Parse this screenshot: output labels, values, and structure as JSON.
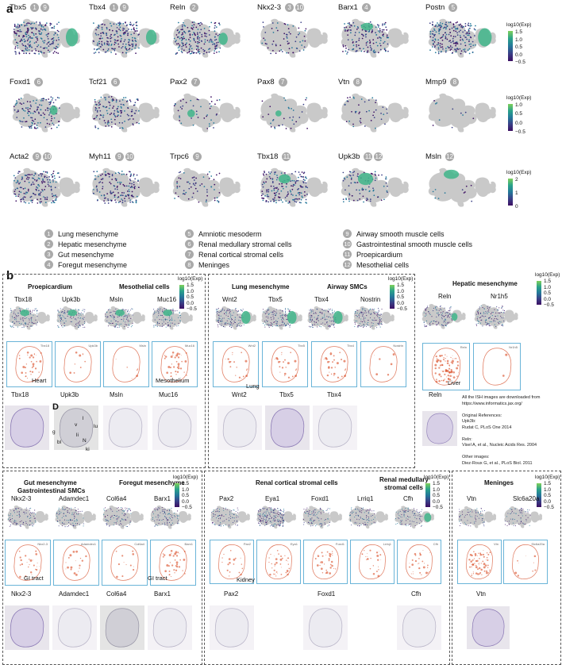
{
  "panel_a": {
    "letter": "a",
    "colorbar_title": "log10(Exp)",
    "colorbar_ticks_rows12": [
      "1.5",
      "1.0",
      "0.5",
      "0.0",
      "−0.5"
    ],
    "colorbar_ticks_row2": [
      "1.0",
      "0.5",
      "0.0",
      "−0.5"
    ],
    "colorbar_ticks_row3": [
      "2",
      "1",
      "0"
    ],
    "genes": [
      {
        "name": "Tbx5",
        "nums": [
          "1",
          "9"
        ]
      },
      {
        "name": "Tbx4",
        "nums": [
          "1",
          "9"
        ]
      },
      {
        "name": "Reln",
        "nums": [
          "2"
        ]
      },
      {
        "name": "Nkx2-3",
        "nums": [
          "3",
          "10"
        ]
      },
      {
        "name": "Barx1",
        "nums": [
          "4"
        ]
      },
      {
        "name": "Postn",
        "nums": [
          "5"
        ]
      },
      {
        "name": "Foxd1",
        "nums": [
          "6"
        ]
      },
      {
        "name": "Tcf21",
        "nums": [
          "6"
        ]
      },
      {
        "name": "Pax2",
        "nums": [
          "7"
        ]
      },
      {
        "name": "Pax8",
        "nums": [
          "7"
        ]
      },
      {
        "name": "Vtn",
        "nums": [
          "8"
        ]
      },
      {
        "name": "Mmp9",
        "nums": [
          "8"
        ]
      },
      {
        "name": "Acta2",
        "nums": [
          "9",
          "10"
        ]
      },
      {
        "name": "Myh11",
        "nums": [
          "9",
          "10"
        ]
      },
      {
        "name": "Trpc6",
        "nums": [
          "9"
        ]
      },
      {
        "name": "Tbx18",
        "nums": [
          "11"
        ]
      },
      {
        "name": "Upk3b",
        "nums": [
          "11",
          "12"
        ]
      },
      {
        "name": "Msln",
        "nums": [
          "12"
        ]
      }
    ],
    "legend": [
      {
        "n": "1",
        "t": "Lung mesenchyme"
      },
      {
        "n": "2",
        "t": "Hepatic mesenchyme"
      },
      {
        "n": "3",
        "t": "Gut mesenchyme"
      },
      {
        "n": "4",
        "t": "Foregut mesenchyme"
      },
      {
        "n": "5",
        "t": "Amniotic mesoderm"
      },
      {
        "n": "6",
        "t": "Renal medullary stromal cells"
      },
      {
        "n": "7",
        "t": "Renal cortical stromal cells"
      },
      {
        "n": "8",
        "t": "Meninges"
      },
      {
        "n": "9",
        "t": "Airway smooth muscle cells"
      },
      {
        "n": "10",
        "t": "Gastrointestinal smooth muscle cells"
      },
      {
        "n": "11",
        "t": "Proepicardium"
      },
      {
        "n": "12",
        "t": "Mesothelial cells"
      }
    ]
  },
  "panel_b": {
    "letter": "b",
    "cb_title": "log10(Exp)",
    "cb_ticks": [
      "1.5",
      "1.0",
      "0.5",
      "0.0",
      "−0.5"
    ],
    "g1": {
      "title1": "Proepicardium",
      "title2": "Mesothelial cells",
      "genes": [
        "Tbx18",
        "Upk3b",
        "Msln",
        "Muc16"
      ],
      "ish": [
        "Tbx18",
        "Upk3b",
        "Msln",
        "Muc16"
      ],
      "photo": [
        "Tbx18",
        "Upk3b",
        "Msln",
        "Muc16"
      ],
      "ann1": "Heart",
      "ann2": "Mesothelium",
      "D": "D",
      "organs": [
        "g",
        "v",
        "l",
        "lu",
        "bl",
        "li",
        "N",
        "ki"
      ]
    },
    "g2": {
      "title1": "Lung mesenchyme",
      "title2": "Airway SMCs",
      "genes": [
        "Wnt2",
        "Tbx5",
        "Tbx4",
        "Nostrin"
      ],
      "ish": [
        "Wnt2",
        "Tbx5",
        "Tbx4",
        "Nostrin"
      ],
      "photo": [
        "Wnt2",
        "Tbx5",
        "Tbx4"
      ],
      "ann": "Lung"
    },
    "g3": {
      "title": "Hepatic mesenchyme",
      "genes": [
        "Reln",
        "Nr1h5"
      ],
      "ish": [
        "Reln",
        "Nr1h5"
      ],
      "photo": "Reln",
      "ann": "Liver",
      "notes": [
        "All the ISH images are downloaded from",
        "https://www.informatics.jax.org/",
        "",
        "Original References:",
        "Upk3b:",
        "Rudat C, PLoS One 2014",
        "",
        "Reln:",
        "Visel A, et al., Nucleic Acids Res. 2004",
        "",
        "Other images:",
        "Diez-Roux G, et al., PLoS Biol. 2011"
      ]
    },
    "g4": {
      "title1": "Gut mesenchyme",
      "title1b": "Gastrointestinal SMCs",
      "title2": "Foregut mesenchyme",
      "genes": [
        "Nkx2-3",
        "Adamdec1",
        "Col6a4",
        "Barx1"
      ],
      "ish": [
        "Nkx2-3",
        "Adamdec1",
        "Col6a4",
        "Barx1"
      ],
      "photo": [
        "Nkx2-3",
        "Adamdec1",
        "Col6a4",
        "Barx1"
      ],
      "ann1": "GI tract",
      "ann2": "GI tract"
    },
    "g5": {
      "title1": "Renal cortical stromal cells",
      "title2a": "Renal medullary",
      "title2b": "stromal cells",
      "genes": [
        "Pax2",
        "Eya1",
        "Foxd1",
        "Lrriq1",
        "Cfh"
      ],
      "ish": [
        "Pax2",
        "Eya1",
        "Foxd1",
        "Lrriq1",
        "Cfh"
      ],
      "photo": [
        "Pax2",
        "Foxd1",
        "Cfh"
      ],
      "ann": "Kidney"
    },
    "g6": {
      "title": "Meninges",
      "genes": [
        "Vtn",
        "Slc6a20a"
      ],
      "ish": [
        "Vtn",
        "Slc6a20a"
      ],
      "photo": "Vtn"
    }
  }
}
